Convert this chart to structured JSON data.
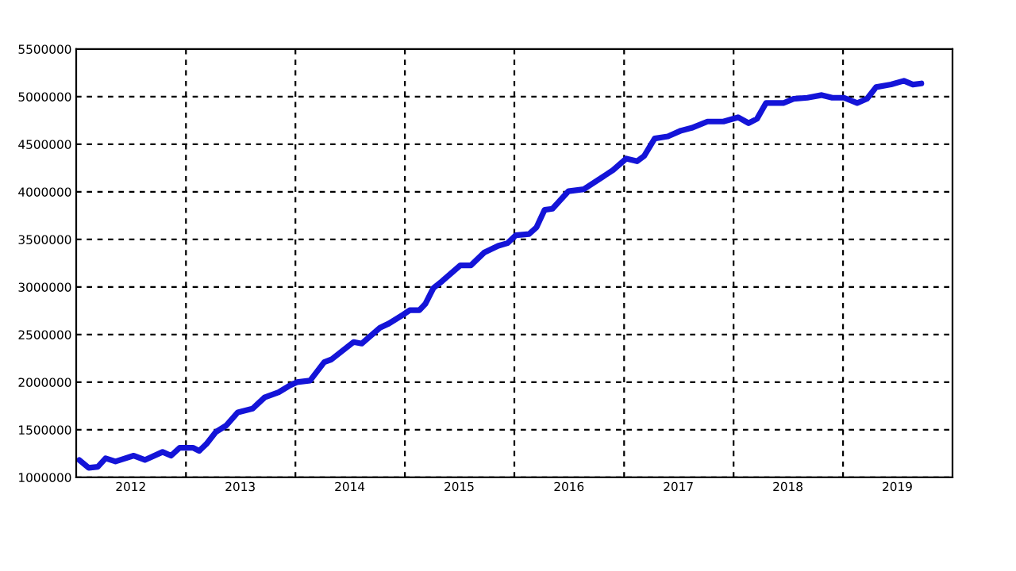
{
  "chart_data": {
    "type": "line",
    "x": [
      "2012-01-11",
      "2012-02-12",
      "2012-03-13",
      "2012-04-08",
      "2012-05-11",
      "2012-07-11",
      "2012-08-17",
      "2012-10-15",
      "2012-11-12",
      "2012-12-11",
      "2013-01-24",
      "2013-02-14",
      "2013-03-10",
      "2013-04-11",
      "2013-05-15",
      "2013-06-23",
      "2013-08-11",
      "2013-09-20",
      "2013-11-06",
      "2013-12-11",
      "2014-01-06",
      "2014-02-19",
      "2014-04-07",
      "2014-05-01",
      "2014-07-14",
      "2014-08-10",
      "2014-10-10",
      "2014-11-09",
      "2014-12-27",
      "2015-01-17",
      "2015-02-18",
      "2015-03-10",
      "2015-04-06",
      "2015-05-05",
      "2015-07-05",
      "2015-08-09",
      "2015-09-22",
      "2015-11-08",
      "2015-12-09",
      "2016-01-06",
      "2016-02-19",
      "2016-03-15",
      "2016-04-11",
      "2016-05-07",
      "2016-06-29",
      "2016-08-20",
      "2016-10-21",
      "2016-11-25",
      "2017-01-08",
      "2017-02-13",
      "2017-03-09",
      "2017-04-13",
      "2017-05-27",
      "2017-07-10",
      "2017-08-14",
      "2017-10-06",
      "2017-11-28",
      "2018-01-16",
      "2018-02-20",
      "2018-03-20",
      "2018-04-19",
      "2018-06-16",
      "2018-07-20",
      "2018-09-04",
      "2018-10-22",
      "2018-11-26",
      "2019-01-04",
      "2019-02-17",
      "2019-03-22",
      "2019-04-21",
      "2019-06-10",
      "2019-07-23",
      "2019-08-22",
      "2019-09-19"
    ],
    "series": [
      {
        "color": "#1414d8",
        "values": [
          1183000,
          1100000,
          1111000,
          1200000,
          1167000,
          1228000,
          1183000,
          1267000,
          1228000,
          1311000,
          1311000,
          1278000,
          1350000,
          1478000,
          1544000,
          1683000,
          1722000,
          1839000,
          1894000,
          1961000,
          2000000,
          2017000,
          2211000,
          2239000,
          2422000,
          2406000,
          2572000,
          2617000,
          2711000,
          2756000,
          2756000,
          2822000,
          2989000,
          3061000,
          3228000,
          3228000,
          3361000,
          3433000,
          3461000,
          3544000,
          3556000,
          3628000,
          3811000,
          3822000,
          4006000,
          4028000,
          4156000,
          4228000,
          4350000,
          4322000,
          4378000,
          4561000,
          4583000,
          4644000,
          4672000,
          4739000,
          4739000,
          4783000,
          4722000,
          4767000,
          4933000,
          4933000,
          4978000,
          4989000,
          5017000,
          4989000,
          4989000,
          4933000,
          4978000,
          5100000,
          5128000,
          5167000,
          5128000,
          5139000
        ]
      }
    ],
    "xlim": [
      "2012-01-01",
      "2020-01-01"
    ],
    "xticks": [
      {
        "value": "2012-07-01",
        "label": "2012"
      },
      {
        "value": "2013-07-01",
        "label": "2013"
      },
      {
        "value": "2014-07-01",
        "label": "2014"
      },
      {
        "value": "2015-07-01",
        "label": "2015"
      },
      {
        "value": "2016-07-01",
        "label": "2016"
      },
      {
        "value": "2017-07-01",
        "label": "2017"
      },
      {
        "value": "2018-07-01",
        "label": "2018"
      },
      {
        "value": "2019-07-01",
        "label": "2019"
      }
    ],
    "ylim": [
      1000000,
      5500000
    ],
    "yticks": [
      1000000,
      1500000,
      2000000,
      2500000,
      3000000,
      3500000,
      4000000,
      4500000,
      5000000,
      5500000
    ],
    "grid": "y",
    "line_style": "solid",
    "ref_lines": [
      {
        "axis": "x",
        "value": "2013-01-01",
        "color": "#000000",
        "line_style": "dashed"
      },
      {
        "axis": "x",
        "value": "2014-01-01",
        "color": "#000000",
        "line_style": "dashed"
      },
      {
        "axis": "x",
        "value": "2015-01-01",
        "color": "#000000",
        "line_style": "dashed"
      },
      {
        "axis": "x",
        "value": "2016-01-01",
        "color": "#000000",
        "line_style": "dashed"
      },
      {
        "axis": "x",
        "value": "2017-01-01",
        "color": "#000000",
        "line_style": "dashed"
      },
      {
        "axis": "x",
        "value": "2018-01-01",
        "color": "#000000",
        "line_style": "dashed"
      },
      {
        "axis": "x",
        "value": "2019-01-01",
        "color": "#000000",
        "line_style": "dashed"
      }
    ]
  }
}
